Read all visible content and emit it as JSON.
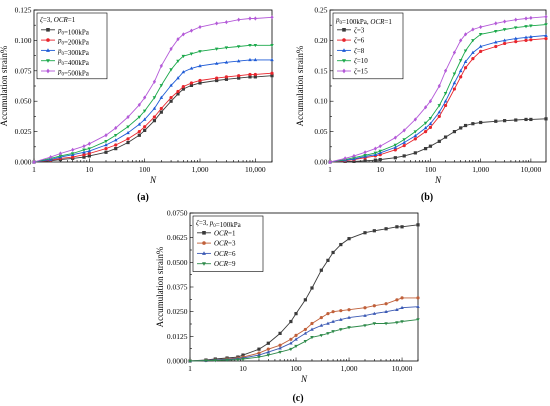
{
  "colors": {
    "100kPa": "#3a3a3a",
    "200kPa": "#e8252d",
    "300kPa": "#1f5bd6",
    "400kPa": "#1aa84a",
    "500kPa": "#b45ad8",
    "zeta3": "#3a3a3a",
    "zeta6": "#e8252d",
    "zeta8": "#1f5bd6",
    "zeta10": "#1aa84a",
    "zeta15": "#b45ad8",
    "ocr1": "#3a3a3a",
    "ocr3": "#c0603a",
    "ocr6": "#3c5ab4",
    "ocr9": "#2e8a4a"
  },
  "chart_data": [
    {
      "id": "a",
      "type": "line",
      "caption": "(a)",
      "xlabel": "N",
      "ylabel": "Accumulation strain%",
      "xscale": "log",
      "xlim": [
        1,
        20000
      ],
      "ylim": [
        0,
        0.125
      ],
      "xticks": [
        1,
        10,
        100,
        1000,
        10000
      ],
      "xtick_labels": [
        "1",
        "10",
        "100",
        "1,000",
        "10,000"
      ],
      "yticks": [
        0,
        0.025,
        0.05,
        0.075,
        0.1,
        0.125
      ],
      "ytick_labels": [
        "0.000",
        "0.025",
        "0.050",
        "0.075",
        "0.100",
        "0.125"
      ],
      "legend_title": "ζ=3,  OCR=1",
      "legend_position": "top-left",
      "x": [
        1,
        2,
        3,
        5,
        8,
        10,
        20,
        30,
        50,
        80,
        100,
        150,
        200,
        300,
        400,
        500,
        700,
        1000,
        2000,
        3000,
        5000,
        8000,
        10000,
        20000
      ],
      "series": [
        {
          "name": "p0=100kPa",
          "marker": "square",
          "color_key": "100kPa",
          "values": [
            0,
            0.001,
            0.002,
            0.003,
            0.004,
            0.005,
            0.008,
            0.011,
            0.016,
            0.022,
            0.026,
            0.034,
            0.041,
            0.05,
            0.056,
            0.06,
            0.063,
            0.065,
            0.067,
            0.068,
            0.069,
            0.07,
            0.07,
            0.071
          ]
        },
        {
          "name": "p0=200kPa",
          "marker": "circle",
          "color_key": "200kPa",
          "values": [
            0,
            0.0015,
            0.003,
            0.004,
            0.006,
            0.007,
            0.011,
            0.014,
            0.019,
            0.025,
            0.029,
            0.037,
            0.044,
            0.053,
            0.058,
            0.062,
            0.065,
            0.067,
            0.069,
            0.07,
            0.071,
            0.072,
            0.072,
            0.073
          ]
        },
        {
          "name": "p0=300kPa",
          "marker": "triangle-up",
          "color_key": "300kPa",
          "values": [
            0,
            0.002,
            0.004,
            0.006,
            0.008,
            0.009,
            0.014,
            0.018,
            0.024,
            0.031,
            0.035,
            0.044,
            0.053,
            0.063,
            0.069,
            0.074,
            0.077,
            0.079,
            0.081,
            0.082,
            0.083,
            0.084,
            0.084,
            0.084
          ]
        },
        {
          "name": "p0=400kPa",
          "marker": "triangle-down",
          "color_key": "400kPa",
          "values": [
            0,
            0.003,
            0.005,
            0.007,
            0.01,
            0.011,
            0.017,
            0.022,
            0.029,
            0.037,
            0.042,
            0.053,
            0.063,
            0.076,
            0.083,
            0.087,
            0.089,
            0.091,
            0.093,
            0.094,
            0.095,
            0.096,
            0.096,
            0.096
          ]
        },
        {
          "name": "p0=500kPa",
          "marker": "diamond",
          "color_key": "500kPa",
          "values": [
            0,
            0.004,
            0.007,
            0.01,
            0.013,
            0.015,
            0.022,
            0.028,
            0.037,
            0.047,
            0.053,
            0.066,
            0.079,
            0.093,
            0.101,
            0.105,
            0.108,
            0.111,
            0.114,
            0.115,
            0.117,
            0.118,
            0.118,
            0.119
          ]
        }
      ]
    },
    {
      "id": "b",
      "type": "line",
      "caption": "(b)",
      "xlabel": "N",
      "ylabel": "Accumulation strain%",
      "xscale": "log",
      "xlim": [
        1,
        20000
      ],
      "ylim": [
        0,
        0.25
      ],
      "xticks": [
        1,
        10,
        100,
        1000,
        10000
      ],
      "xtick_labels": [
        "1",
        "10",
        "100",
        "1,000",
        "10,000"
      ],
      "yticks": [
        0,
        0.05,
        0.1,
        0.15,
        0.2,
        0.25
      ],
      "ytick_labels": [
        "0.00",
        "0.05",
        "0.10",
        "0.15",
        "0.20",
        "0.25"
      ],
      "legend_title": "p0=100kPa,  OCR=1",
      "legend_position": "top-left",
      "x": [
        1,
        2,
        3,
        5,
        8,
        10,
        20,
        30,
        50,
        80,
        100,
        150,
        200,
        300,
        400,
        500,
        700,
        1000,
        2000,
        3000,
        5000,
        8000,
        10000,
        20000
      ],
      "series": [
        {
          "name": "ζ=3",
          "marker": "square",
          "color_key": "zeta3",
          "values": [
            0,
            0.001,
            0.001,
            0.002,
            0.003,
            0.004,
            0.007,
            0.01,
            0.015,
            0.022,
            0.026,
            0.034,
            0.041,
            0.05,
            0.056,
            0.06,
            0.063,
            0.065,
            0.067,
            0.068,
            0.069,
            0.07,
            0.07,
            0.071
          ]
        },
        {
          "name": "ζ=6",
          "marker": "circle",
          "color_key": "zeta6",
          "values": [
            0,
            0.002,
            0.004,
            0.007,
            0.01,
            0.012,
            0.02,
            0.027,
            0.038,
            0.05,
            0.057,
            0.075,
            0.093,
            0.12,
            0.14,
            0.155,
            0.17,
            0.182,
            0.19,
            0.195,
            0.198,
            0.2,
            0.201,
            0.203
          ]
        },
        {
          "name": "ζ=8",
          "marker": "triangle-up",
          "color_key": "zeta8",
          "values": [
            0,
            0.003,
            0.005,
            0.009,
            0.012,
            0.015,
            0.024,
            0.032,
            0.043,
            0.056,
            0.063,
            0.082,
            0.1,
            0.13,
            0.15,
            0.165,
            0.18,
            0.19,
            0.197,
            0.2,
            0.203,
            0.205,
            0.206,
            0.208
          ]
        },
        {
          "name": "ζ=10",
          "marker": "triangle-down",
          "color_key": "zeta10",
          "values": [
            0,
            0.004,
            0.007,
            0.011,
            0.015,
            0.018,
            0.028,
            0.037,
            0.05,
            0.064,
            0.072,
            0.093,
            0.113,
            0.145,
            0.167,
            0.183,
            0.2,
            0.21,
            0.215,
            0.218,
            0.221,
            0.223,
            0.224,
            0.226
          ]
        },
        {
          "name": "ζ=15",
          "marker": "diamond",
          "color_key": "zeta15",
          "values": [
            0,
            0.006,
            0.01,
            0.016,
            0.022,
            0.026,
            0.04,
            0.052,
            0.07,
            0.09,
            0.1,
            0.125,
            0.15,
            0.18,
            0.2,
            0.21,
            0.218,
            0.222,
            0.228,
            0.231,
            0.234,
            0.236,
            0.237,
            0.239
          ]
        }
      ]
    },
    {
      "id": "c",
      "type": "line",
      "caption": "(c)",
      "xlabel": "N",
      "ylabel": "Accumulation strain%",
      "xscale": "log",
      "xlim": [
        1,
        20000
      ],
      "ylim": [
        0,
        0.075
      ],
      "xticks": [
        1,
        10,
        100,
        1000,
        10000
      ],
      "xtick_labels": [
        "1",
        "10",
        "100",
        "1,000",
        "10,000"
      ],
      "yticks": [
        0,
        0.0125,
        0.025,
        0.0375,
        0.05,
        0.0625,
        0.075
      ],
      "ytick_labels": [
        "0.0000",
        "0.0125",
        "0.0250",
        "0.0375",
        "0.0500",
        "0.0625",
        "0.0750"
      ],
      "legend_title": "ζ=3,  p0=100kPa",
      "legend_position": "top-left",
      "x": [
        1,
        2,
        3,
        5,
        8,
        10,
        20,
        30,
        50,
        80,
        100,
        150,
        200,
        300,
        400,
        500,
        700,
        1000,
        2000,
        3000,
        5000,
        8000,
        10000,
        20000
      ],
      "series": [
        {
          "name": "OCR=1",
          "marker": "square",
          "color_key": "ocr1",
          "values": [
            0,
            0.0005,
            0.001,
            0.0015,
            0.002,
            0.003,
            0.006,
            0.009,
            0.014,
            0.02,
            0.024,
            0.031,
            0.037,
            0.046,
            0.051,
            0.055,
            0.059,
            0.062,
            0.065,
            0.066,
            0.067,
            0.068,
            0.068,
            0.069
          ]
        },
        {
          "name": "OCR=3",
          "marker": "circle",
          "color_key": "ocr3",
          "values": [
            0,
            0.0003,
            0.0005,
            0.001,
            0.0015,
            0.002,
            0.004,
            0.006,
            0.008,
            0.011,
            0.013,
            0.016,
            0.019,
            0.022,
            0.024,
            0.025,
            0.0255,
            0.026,
            0.027,
            0.028,
            0.029,
            0.031,
            0.032,
            0.032
          ]
        },
        {
          "name": "OCR=6",
          "marker": "triangle-up",
          "color_key": "ocr6",
          "values": [
            0,
            0.0003,
            0.0005,
            0.0008,
            0.0012,
            0.0015,
            0.003,
            0.0045,
            0.0065,
            0.009,
            0.011,
            0.014,
            0.016,
            0.018,
            0.019,
            0.02,
            0.021,
            0.022,
            0.023,
            0.024,
            0.025,
            0.026,
            0.027,
            0.0275
          ]
        },
        {
          "name": "OCR=9",
          "marker": "triangle-down",
          "color_key": "ocr9",
          "values": [
            0,
            0.0002,
            0.0003,
            0.0005,
            0.0007,
            0.001,
            0.002,
            0.003,
            0.0045,
            0.006,
            0.0075,
            0.01,
            0.012,
            0.013,
            0.014,
            0.015,
            0.016,
            0.017,
            0.018,
            0.019,
            0.019,
            0.0195,
            0.02,
            0.021
          ]
        }
      ]
    }
  ]
}
